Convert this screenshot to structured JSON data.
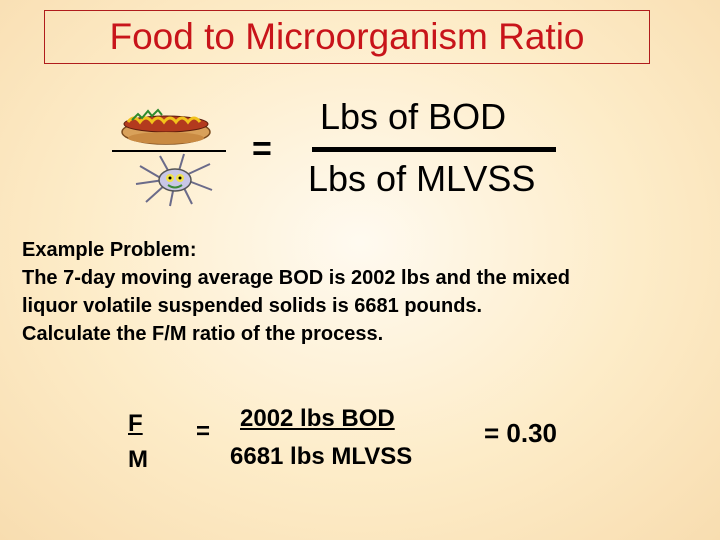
{
  "title": "Food to Microorganism Ratio",
  "formula": {
    "equals": "=",
    "numerator": "Lbs of BOD",
    "denominator": "Lbs of MLVSS"
  },
  "illustrations": {
    "food_icon": "hotdog-icon",
    "microorganism_icon": "microbe-icon"
  },
  "problem": {
    "lines": [
      "Example Problem:",
      "The 7-day moving average BOD is 2002 lbs and the mixed",
      "liquor volatile suspended solids is 6681 pounds.",
      "Calculate the F/M ratio of the process."
    ]
  },
  "calculation": {
    "f": "F",
    "m": "M",
    "equals": "=",
    "numerator": "2002 lbs BOD",
    "denominator": "6681 lbs MLVSS",
    "result": "= 0.30"
  },
  "colors": {
    "title": "#c8141a",
    "title_border": "#b01c1c"
  }
}
